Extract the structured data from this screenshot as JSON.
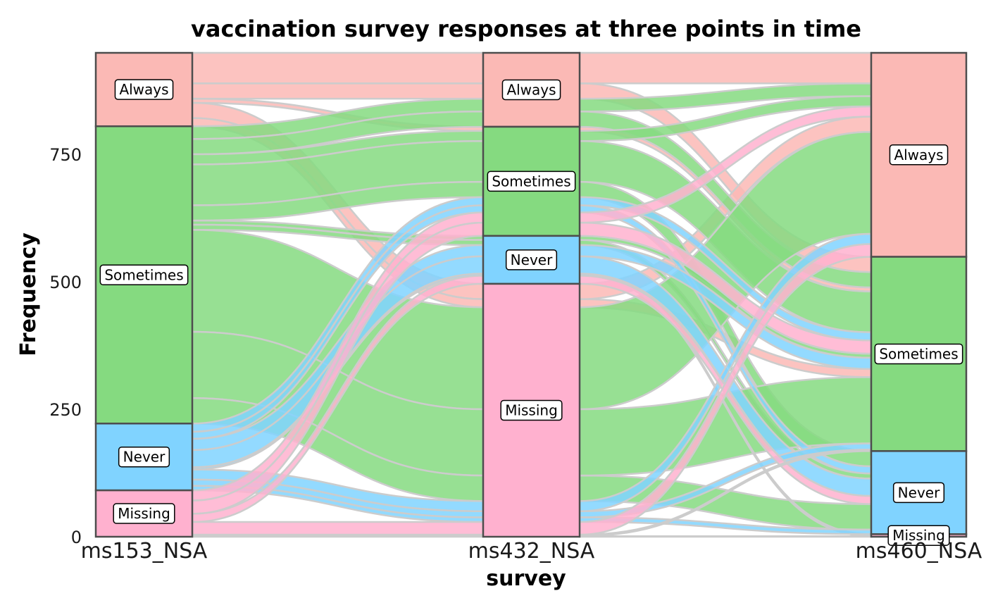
{
  "chart_data": {
    "type": "alluvial",
    "title": "vaccination survey responses at three points in time",
    "xlabel": "survey",
    "ylabel": "Frequency",
    "ylim": [
      0,
      949
    ],
    "yticks": [
      0,
      250,
      500,
      750
    ],
    "ytick_labels": [
      "0",
      "250",
      "500",
      "750"
    ],
    "axes": [
      "ms153_NSA",
      "ms432_NSA",
      "ms460_NSA"
    ],
    "categories": [
      "Always",
      "Sometimes",
      "Never",
      "Missing"
    ],
    "colors": {
      "Always": "#F8766D",
      "Sometimes": "#7CAE00",
      "Never": "#00BFC4",
      "Missing": "#C77CFF"
    },
    "fill_colors": {
      "Always": "#FBB9B5",
      "Sometimes": "#85DA80",
      "Never": "#80D3FF",
      "Missing": "#FFB1CF"
    },
    "alluvia": [
      {
        "path": [
          "Always",
          "Always",
          "Always"
        ],
        "n": 60
      },
      {
        "path": [
          "Always",
          "Always",
          "Sometimes"
        ],
        "n": 30
      },
      {
        "path": [
          "Always",
          "Sometimes",
          "Sometimes"
        ],
        "n": 8
      },
      {
        "path": [
          "Always",
          "Missing",
          "Always"
        ],
        "n": 30
      },
      {
        "path": [
          "Always",
          "Missing",
          "Sometimes"
        ],
        "n": 16
      },
      {
        "path": [
          "Sometimes",
          "Always",
          "Always"
        ],
        "n": 25
      },
      {
        "path": [
          "Sometimes",
          "Always",
          "Sometimes"
        ],
        "n": 30
      },
      {
        "path": [
          "Sometimes",
          "Sometimes",
          "Always"
        ],
        "n": 20
      },
      {
        "path": [
          "Sometimes",
          "Sometimes",
          "Sometimes"
        ],
        "n": 80
      },
      {
        "path": [
          "Sometimes",
          "Sometimes",
          "Never"
        ],
        "n": 30
      },
      {
        "path": [
          "Sometimes",
          "Never",
          "Sometimes"
        ],
        "n": 8
      },
      {
        "path": [
          "Sometimes",
          "Never",
          "Never"
        ],
        "n": 10
      },
      {
        "path": [
          "Sometimes",
          "Missing",
          "Always"
        ],
        "n": 200
      },
      {
        "path": [
          "Sometimes",
          "Missing",
          "Sometimes"
        ],
        "n": 130
      },
      {
        "path": [
          "Sometimes",
          "Missing",
          "Never"
        ],
        "n": 50
      },
      {
        "path": [
          "Never",
          "Sometimes",
          "Sometimes"
        ],
        "n": 16
      },
      {
        "path": [
          "Never",
          "Sometimes",
          "Never"
        ],
        "n": 14
      },
      {
        "path": [
          "Never",
          "Never",
          "Sometimes"
        ],
        "n": 22
      },
      {
        "path": [
          "Never",
          "Never",
          "Never"
        ],
        "n": 34
      },
      {
        "path": [
          "Never",
          "Never",
          "Missing"
        ],
        "n": 4
      },
      {
        "path": [
          "Never",
          "Missing",
          "Always"
        ],
        "n": 20
      },
      {
        "path": [
          "Never",
          "Missing",
          "Sometimes"
        ],
        "n": 12
      },
      {
        "path": [
          "Never",
          "Missing",
          "Never"
        ],
        "n": 9
      },
      {
        "path": [
          "Missing",
          "Sometimes",
          "Always"
        ],
        "n": 20
      },
      {
        "path": [
          "Missing",
          "Sometimes",
          "Sometimes"
        ],
        "n": 26
      },
      {
        "path": [
          "Missing",
          "Never",
          "Never"
        ],
        "n": 16
      },
      {
        "path": [
          "Missing",
          "Missing",
          "Always"
        ],
        "n": 25
      },
      {
        "path": [
          "Missing",
          "Missing",
          "Sometimes"
        ],
        "n": 3
      },
      {
        "path": [
          "Missing",
          "Missing",
          "Missing"
        ],
        "n": 1
      }
    ]
  }
}
